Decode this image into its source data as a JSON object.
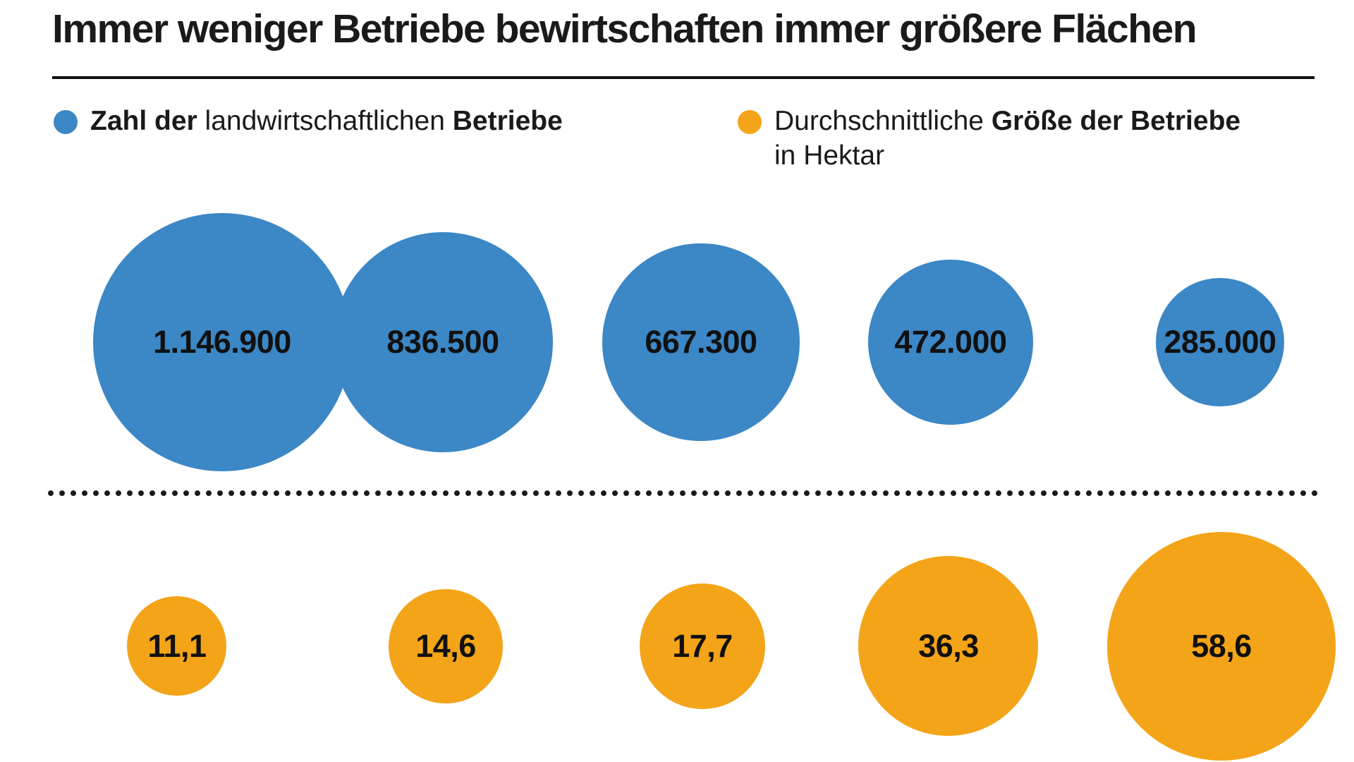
{
  "title": "Immer weniger Betriebe bewirtschaften immer größere Flächen",
  "legend": {
    "betriebe": {
      "bold_lead": "Zahl der",
      "regular_mid": "landwirtschaftlichen",
      "bold_tail": "Betriebe"
    },
    "groesse": {
      "regular_lead": "Durchschnittliche",
      "bold_tail": "Größe der Betriebe",
      "line2": "in Hektar"
    }
  },
  "colors": {
    "blue": "#3c87c5",
    "orange": "#f4a418",
    "text": "#1a1a1a",
    "rule": "#111111"
  },
  "chart_data": {
    "type": "bubble",
    "title": "Immer weniger Betriebe bewirtschaften immer größere Flächen",
    "layout_hint": "two horizontal rows of circles, area proportional to value, legend on top, dotted divider between rows",
    "series": [
      {
        "name": "Zahl der landwirtschaftlichen Betriebe",
        "color": "#3c87c5",
        "values": [
          1146900,
          836500,
          667300,
          472000,
          285000
        ],
        "value_labels": [
          "1.146.900",
          "836.500",
          "667.300",
          "472.000",
          "285.000"
        ]
      },
      {
        "name": "Durchschnittliche Größe der Betriebe in Hektar",
        "color": "#f4a418",
        "values": [
          11.1,
          14.6,
          17.7,
          36.3,
          58.6
        ],
        "value_labels": [
          "11,1",
          "14,6",
          "17,7",
          "36,3",
          "58,6"
        ]
      }
    ]
  }
}
